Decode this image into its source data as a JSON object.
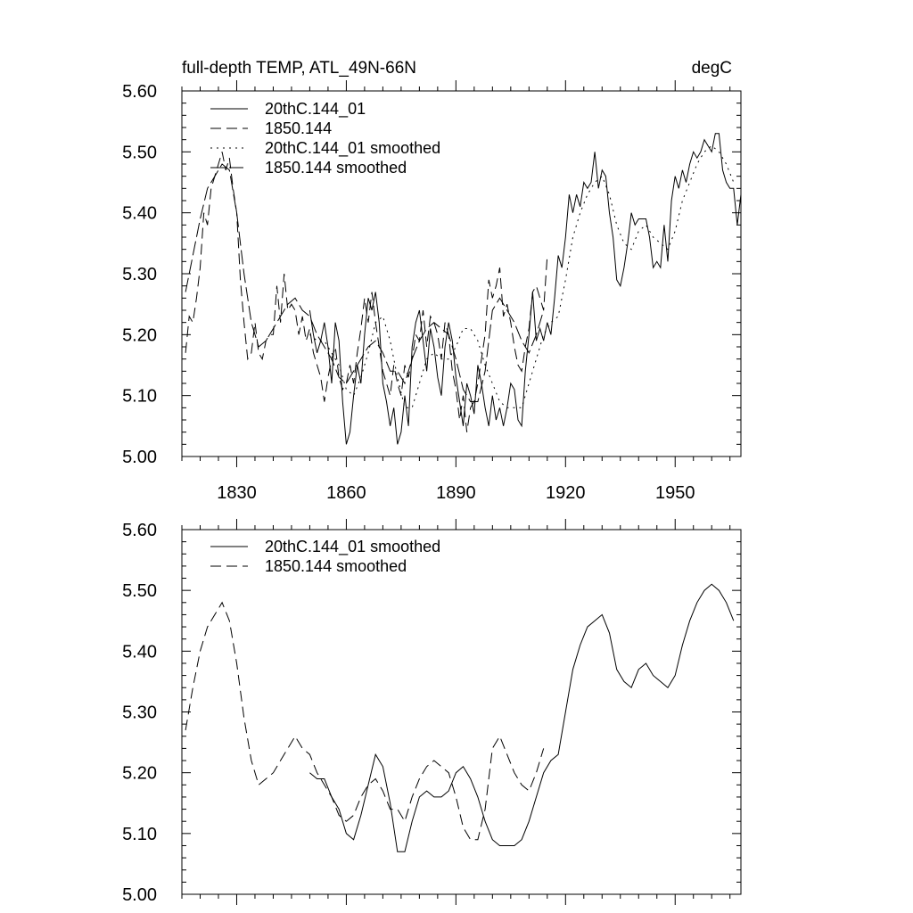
{
  "chart_data": [
    {
      "type": "line",
      "title": "full-depth TEMP, ATL_49N-66N",
      "units": "degC",
      "xlabel": "",
      "ylabel": "",
      "xlim": [
        1815,
        1968
      ],
      "ylim": [
        5.0,
        5.6
      ],
      "xticks": [
        1830,
        1860,
        1890,
        1920,
        1950
      ],
      "xtick_labels": [
        "1830",
        "1860",
        "1890",
        "1920",
        "1950"
      ],
      "yticks": [
        5.0,
        5.1,
        5.2,
        5.3,
        5.4,
        5.5,
        5.6
      ],
      "ytick_labels": [
        "5.00",
        "5.10",
        "5.20",
        "5.30",
        "5.40",
        "5.50",
        "5.60"
      ],
      "legend_position": "top-left",
      "series": [
        {
          "name": "20thC.144_01",
          "style": "solid",
          "x": [
            1850,
            1851,
            1852,
            1853,
            1854,
            1855,
            1856,
            1857,
            1858,
            1859,
            1860,
            1861,
            1862,
            1863,
            1864,
            1865,
            1866,
            1867,
            1868,
            1869,
            1870,
            1871,
            1872,
            1873,
            1874,
            1875,
            1876,
            1877,
            1878,
            1879,
            1880,
            1881,
            1882,
            1883,
            1884,
            1885,
            1886,
            1887,
            1888,
            1889,
            1890,
            1891,
            1892,
            1893,
            1894,
            1895,
            1896,
            1897,
            1898,
            1899,
            1900,
            1901,
            1902,
            1903,
            1904,
            1905,
            1906,
            1907,
            1908,
            1909,
            1910,
            1911,
            1912,
            1913,
            1914,
            1915,
            1916,
            1917,
            1918,
            1919,
            1920,
            1921,
            1922,
            1923,
            1924,
            1925,
            1926,
            1927,
            1928,
            1929,
            1930,
            1931,
            1932,
            1933,
            1934,
            1935,
            1936,
            1937,
            1938,
            1939,
            1940,
            1941,
            1942,
            1943,
            1944,
            1945,
            1946,
            1947,
            1948,
            1949,
            1950,
            1951,
            1952,
            1953,
            1954,
            1955,
            1956,
            1957,
            1958,
            1959,
            1960,
            1961,
            1962,
            1963,
            1964,
            1965,
            1966,
            1967,
            1968
          ],
          "values": [
            5.24,
            5.2,
            5.17,
            5.19,
            5.22,
            5.18,
            5.12,
            5.22,
            5.19,
            5.09,
            5.02,
            5.04,
            5.1,
            5.15,
            5.12,
            5.2,
            5.26,
            5.24,
            5.27,
            5.22,
            5.12,
            5.09,
            5.05,
            5.08,
            5.02,
            5.04,
            5.1,
            5.05,
            5.18,
            5.22,
            5.24,
            5.19,
            5.14,
            5.21,
            5.18,
            5.13,
            5.1,
            5.18,
            5.22,
            5.19,
            5.13,
            5.09,
            5.05,
            5.12,
            5.1,
            5.07,
            5.15,
            5.12,
            5.08,
            5.05,
            5.1,
            5.06,
            5.08,
            5.05,
            5.08,
            5.12,
            5.11,
            5.06,
            5.05,
            5.14,
            5.2,
            5.27,
            5.19,
            5.21,
            5.19,
            5.22,
            5.2,
            5.26,
            5.33,
            5.31,
            5.36,
            5.43,
            5.4,
            5.43,
            5.41,
            5.45,
            5.44,
            5.45,
            5.5,
            5.44,
            5.47,
            5.46,
            5.4,
            5.36,
            5.29,
            5.28,
            5.31,
            5.35,
            5.4,
            5.38,
            5.39,
            5.39,
            5.39,
            5.36,
            5.31,
            5.32,
            5.31,
            5.38,
            5.32,
            5.42,
            5.46,
            5.44,
            5.47,
            5.45,
            5.48,
            5.5,
            5.49,
            5.5,
            5.52,
            5.51,
            5.5,
            5.53,
            5.53,
            5.47,
            5.45,
            5.44,
            5.44,
            5.38,
            5.43
          ]
        },
        {
          "name": "1850.144",
          "style": "dashed",
          "x": [
            1816,
            1817,
            1818,
            1819,
            1820,
            1821,
            1822,
            1823,
            1824,
            1825,
            1826,
            1827,
            1828,
            1829,
            1830,
            1831,
            1832,
            1833,
            1834,
            1835,
            1836,
            1837,
            1838,
            1839,
            1840,
            1841,
            1842,
            1843,
            1844,
            1845,
            1846,
            1847,
            1848,
            1849,
            1850,
            1851,
            1852,
            1853,
            1854,
            1855,
            1856,
            1857,
            1858,
            1859,
            1860,
            1861,
            1862,
            1863,
            1864,
            1865,
            1866,
            1867,
            1868,
            1869,
            1870,
            1871,
            1872,
            1873,
            1874,
            1875,
            1876,
            1877,
            1878,
            1879,
            1880,
            1881,
            1882,
            1883,
            1884,
            1885,
            1886,
            1887,
            1888,
            1889,
            1890,
            1891,
            1892,
            1893,
            1894,
            1895,
            1896,
            1897,
            1898,
            1899,
            1900,
            1901,
            1902,
            1903,
            1904,
            1905,
            1906,
            1907,
            1908,
            1909,
            1910,
            1911,
            1912,
            1913,
            1914,
            1915
          ],
          "values": [
            5.17,
            5.23,
            5.22,
            5.26,
            5.31,
            5.4,
            5.38,
            5.44,
            5.46,
            5.48,
            5.5,
            5.47,
            5.49,
            5.44,
            5.4,
            5.29,
            5.22,
            5.16,
            5.17,
            5.22,
            5.17,
            5.16,
            5.19,
            5.2,
            5.2,
            5.28,
            5.22,
            5.3,
            5.24,
            5.25,
            5.24,
            5.2,
            5.23,
            5.19,
            5.21,
            5.17,
            5.15,
            5.13,
            5.09,
            5.13,
            5.16,
            5.18,
            5.13,
            5.11,
            5.12,
            5.15,
            5.12,
            5.17,
            5.21,
            5.26,
            5.22,
            5.27,
            5.22,
            5.18,
            5.14,
            5.12,
            5.1,
            5.15,
            5.12,
            5.1,
            5.15,
            5.13,
            5.16,
            5.2,
            5.19,
            5.24,
            5.18,
            5.23,
            5.22,
            5.2,
            5.16,
            5.22,
            5.2,
            5.14,
            5.11,
            5.06,
            5.1,
            5.04,
            5.08,
            5.09,
            5.12,
            5.16,
            5.2,
            5.29,
            5.26,
            5.28,
            5.31,
            5.23,
            5.25,
            5.22,
            5.18,
            5.15,
            5.14,
            5.18,
            5.21,
            5.27,
            5.28,
            5.26,
            5.24,
            5.33
          ]
        },
        {
          "name": "20thC.144_01 smoothed",
          "style": "dotted",
          "x": [
            1850,
            1852,
            1854,
            1856,
            1858,
            1860,
            1862,
            1864,
            1866,
            1868,
            1870,
            1872,
            1874,
            1876,
            1878,
            1880,
            1882,
            1884,
            1886,
            1888,
            1890,
            1892,
            1894,
            1896,
            1898,
            1900,
            1902,
            1904,
            1906,
            1908,
            1910,
            1912,
            1914,
            1916,
            1918,
            1920,
            1922,
            1924,
            1926,
            1928,
            1930,
            1932,
            1934,
            1936,
            1938,
            1940,
            1942,
            1944,
            1946,
            1948,
            1950,
            1952,
            1954,
            1956,
            1958,
            1960,
            1962,
            1964,
            1966
          ],
          "values": [
            5.2,
            5.19,
            5.19,
            5.17,
            5.15,
            5.11,
            5.1,
            5.13,
            5.17,
            5.22,
            5.23,
            5.19,
            5.13,
            5.08,
            5.08,
            5.12,
            5.16,
            5.17,
            5.16,
            5.16,
            5.18,
            5.21,
            5.21,
            5.19,
            5.15,
            5.12,
            5.09,
            5.08,
            5.08,
            5.08,
            5.12,
            5.16,
            5.2,
            5.22,
            5.23,
            5.29,
            5.36,
            5.4,
            5.43,
            5.45,
            5.46,
            5.43,
            5.38,
            5.35,
            5.34,
            5.37,
            5.38,
            5.36,
            5.35,
            5.34,
            5.37,
            5.42,
            5.45,
            5.48,
            5.5,
            5.51,
            5.5,
            5.48,
            5.45
          ]
        },
        {
          "name": "1850.144 smoothed",
          "style": "long-dashed",
          "x": [
            1816,
            1818,
            1820,
            1822,
            1824,
            1826,
            1828,
            1830,
            1832,
            1834,
            1836,
            1838,
            1840,
            1842,
            1844,
            1846,
            1848,
            1850,
            1852,
            1854,
            1856,
            1858,
            1860,
            1862,
            1864,
            1866,
            1868,
            1870,
            1872,
            1874,
            1876,
            1878,
            1880,
            1882,
            1884,
            1886,
            1888,
            1890,
            1892,
            1894,
            1896,
            1898,
            1900,
            1902,
            1904,
            1906,
            1908,
            1910,
            1912,
            1914
          ],
          "values": [
            5.27,
            5.33,
            5.39,
            5.44,
            5.46,
            5.48,
            5.47,
            5.4,
            5.3,
            5.22,
            5.18,
            5.19,
            5.21,
            5.23,
            5.25,
            5.26,
            5.24,
            5.23,
            5.2,
            5.18,
            5.16,
            5.13,
            5.12,
            5.14,
            5.16,
            5.18,
            5.19,
            5.17,
            5.14,
            5.14,
            5.12,
            5.16,
            5.19,
            5.21,
            5.22,
            5.21,
            5.2,
            5.16,
            5.11,
            5.09,
            5.09,
            5.14,
            5.24,
            5.26,
            5.24,
            5.22,
            5.19,
            5.17,
            5.2,
            5.24
          ]
        }
      ]
    },
    {
      "type": "line",
      "title": "",
      "xlabel": "",
      "ylabel": "",
      "xlim": [
        1815,
        1968
      ],
      "ylim": [
        5.0,
        5.6
      ],
      "xticks": [
        1830,
        1860,
        1890,
        1920,
        1950
      ],
      "yticks": [
        5.0,
        5.1,
        5.2,
        5.3,
        5.4,
        5.5,
        5.6
      ],
      "ytick_labels": [
        "5.00",
        "5.10",
        "5.20",
        "5.30",
        "5.40",
        "5.50",
        "5.60"
      ],
      "legend_position": "top-left",
      "series": [
        {
          "name": "20thC.144_01 smoothed",
          "style": "solid",
          "x": [
            1850,
            1852,
            1854,
            1856,
            1858,
            1860,
            1862,
            1864,
            1866,
            1868,
            1870,
            1872,
            1874,
            1876,
            1878,
            1880,
            1882,
            1884,
            1886,
            1888,
            1890,
            1892,
            1894,
            1896,
            1898,
            1900,
            1902,
            1904,
            1906,
            1908,
            1910,
            1912,
            1914,
            1916,
            1918,
            1920,
            1922,
            1924,
            1926,
            1928,
            1930,
            1932,
            1934,
            1936,
            1938,
            1940,
            1942,
            1944,
            1946,
            1948,
            1950,
            1952,
            1954,
            1956,
            1958,
            1960,
            1962,
            1964,
            1966
          ],
          "values": [
            5.2,
            5.19,
            5.19,
            5.16,
            5.14,
            5.1,
            5.09,
            5.13,
            5.18,
            5.23,
            5.21,
            5.15,
            5.07,
            5.07,
            5.12,
            5.16,
            5.17,
            5.16,
            5.16,
            5.17,
            5.2,
            5.21,
            5.19,
            5.16,
            5.12,
            5.09,
            5.08,
            5.08,
            5.08,
            5.09,
            5.12,
            5.16,
            5.2,
            5.22,
            5.23,
            5.3,
            5.37,
            5.41,
            5.44,
            5.45,
            5.46,
            5.43,
            5.37,
            5.35,
            5.34,
            5.37,
            5.38,
            5.36,
            5.35,
            5.34,
            5.36,
            5.41,
            5.45,
            5.48,
            5.5,
            5.51,
            5.5,
            5.48,
            5.45
          ]
        },
        {
          "name": "1850.144 smoothed",
          "style": "dashed",
          "x": [
            1816,
            1818,
            1820,
            1822,
            1824,
            1826,
            1828,
            1830,
            1832,
            1834,
            1836,
            1838,
            1840,
            1842,
            1844,
            1846,
            1848,
            1850,
            1852,
            1854,
            1856,
            1858,
            1860,
            1862,
            1864,
            1866,
            1868,
            1870,
            1872,
            1874,
            1876,
            1878,
            1880,
            1882,
            1884,
            1886,
            1888,
            1890,
            1892,
            1894,
            1896,
            1898,
            1900,
            1902,
            1904,
            1906,
            1908,
            1910,
            1912,
            1914
          ],
          "values": [
            5.27,
            5.34,
            5.4,
            5.44,
            5.46,
            5.48,
            5.45,
            5.38,
            5.29,
            5.22,
            5.18,
            5.19,
            5.2,
            5.22,
            5.24,
            5.26,
            5.24,
            5.23,
            5.2,
            5.18,
            5.16,
            5.13,
            5.12,
            5.13,
            5.16,
            5.18,
            5.19,
            5.17,
            5.14,
            5.14,
            5.12,
            5.16,
            5.19,
            5.21,
            5.22,
            5.21,
            5.2,
            5.16,
            5.11,
            5.09,
            5.09,
            5.14,
            5.24,
            5.26,
            5.23,
            5.2,
            5.18,
            5.17,
            5.2,
            5.24
          ]
        }
      ]
    }
  ]
}
